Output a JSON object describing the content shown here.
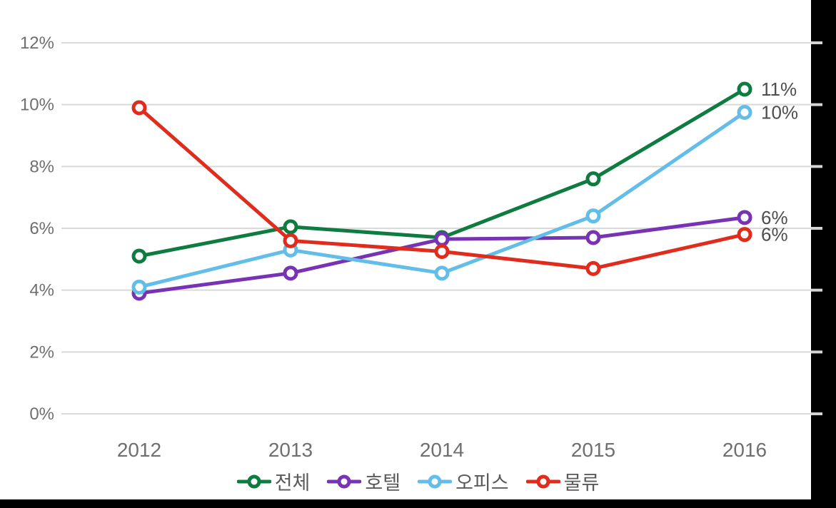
{
  "chart_data": {
    "type": "line",
    "title": "",
    "categories": [
      "2012",
      "2013",
      "2014",
      "2015",
      "2016"
    ],
    "series": [
      {
        "key": "total",
        "name": "전체",
        "color": "#0e7b41",
        "values": [
          5.1,
          6.05,
          5.7,
          7.6,
          10.5
        ],
        "end_label": "11%"
      },
      {
        "key": "hotel",
        "name": "호텔",
        "color": "#7833b4",
        "values": [
          3.9,
          4.55,
          5.65,
          5.7,
          6.35
        ],
        "end_label": "6%"
      },
      {
        "key": "office",
        "name": "오피스",
        "color": "#62bde9",
        "values": [
          4.1,
          5.3,
          4.55,
          6.4,
          9.75
        ],
        "end_label": "10%"
      },
      {
        "key": "logistics",
        "name": "물류",
        "color": "#e02c1d",
        "values": [
          9.9,
          5.6,
          5.25,
          4.7,
          5.8
        ],
        "end_label": "6%"
      }
    ],
    "y_axis": {
      "min": 0,
      "max": 12,
      "step": 2,
      "tick_labels": [
        "0%",
        "2%",
        "4%",
        "6%",
        "8%",
        "10%",
        "12%"
      ]
    },
    "x_axis": {
      "label": ""
    },
    "legend": {
      "position": "bottom"
    },
    "grid": true,
    "colors": {
      "gridline": "#d9d9d9",
      "axis_text": "#6f6f6f",
      "data_label_text": "#4d4d4d",
      "legend_text": "#5a5a5a",
      "frame_bars": "#000000",
      "right_edge_tick": "#d4d4d4"
    }
  }
}
